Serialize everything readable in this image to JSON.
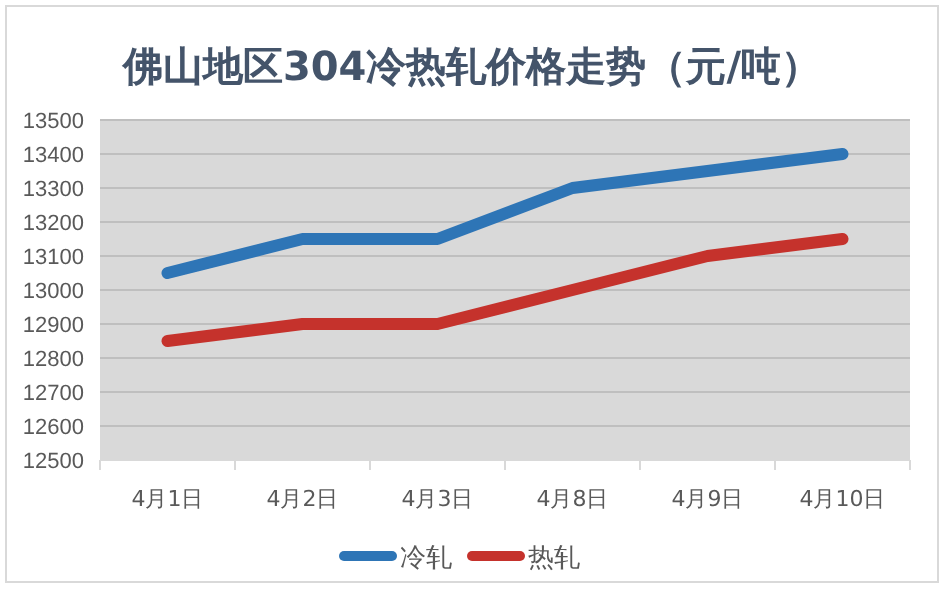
{
  "chart_data": {
    "type": "line",
    "title": "佛山地区304冷热轧价格走势（元/吨）",
    "categories": [
      "4月1日",
      "4月2日",
      "4月3日",
      "4月8日",
      "4月9日",
      "4月10日"
    ],
    "series": [
      {
        "name": "冷轧",
        "color": "#2e75b6",
        "values": [
          13050,
          13150,
          13150,
          13300,
          13350,
          13400
        ]
      },
      {
        "name": "热轧",
        "color": "#c5322c",
        "values": [
          12850,
          12900,
          12900,
          13000,
          13100,
          13150
        ]
      }
    ],
    "ylim": [
      12500,
      13500
    ],
    "yticks": [
      12500,
      12600,
      12700,
      12800,
      12900,
      13000,
      13100,
      13200,
      13300,
      13400,
      13500
    ],
    "grid": "y",
    "legend": "bottom"
  }
}
